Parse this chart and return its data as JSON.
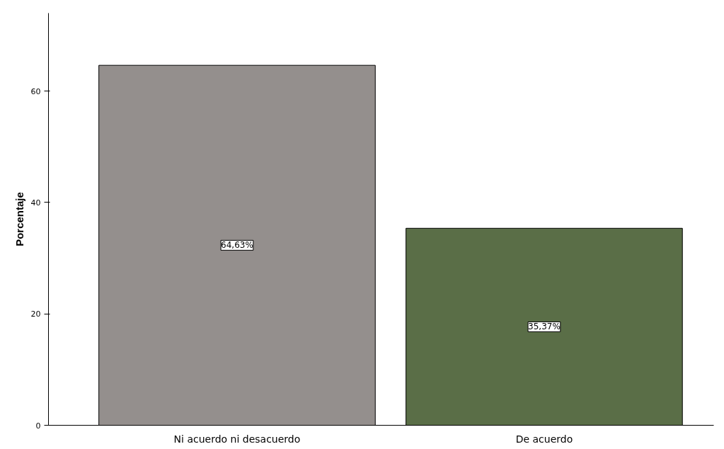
{
  "chart_data": {
    "type": "bar",
    "ylabel": "Porcentaje",
    "categories": [
      "Ni acuerdo ni desacuerdo",
      "De acuerdo"
    ],
    "values": [
      64.63,
      35.37
    ],
    "colors": [
      "#948f8d",
      "#5a6e47"
    ],
    "value_labels": [
      "64,63%",
      "35,37%"
    ],
    "ylim": [
      0,
      74
    ],
    "yticks": [
      0,
      20,
      40,
      60
    ],
    "grid": false
  }
}
